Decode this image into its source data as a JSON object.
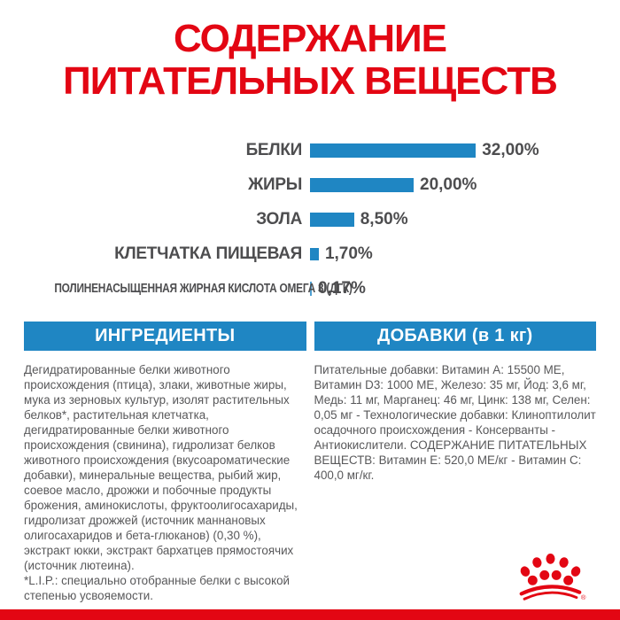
{
  "title": {
    "text": "СОДЕРЖАНИЕ ПИТАТЕЛЬНЫХ ВЕЩЕСТВ"
  },
  "chart_data": {
    "type": "bar",
    "orientation": "horizontal",
    "title": "СОДЕРЖАНИЕ ПИТАТЕЛЬНЫХ ВЕЩЕСТВ",
    "categories": [
      "БЕЛКИ",
      "ЖИРЫ",
      "ЗОЛА",
      "КЛЕТЧАТКА ПИЩЕВАЯ",
      "ПОЛИНЕНАСЫЩЕННАЯ ЖИРНАЯ КИСЛОТА ОМЕГА 3 (ДГК)"
    ],
    "values": [
      32.0,
      20.0,
      8.5,
      1.7,
      0.17
    ],
    "value_labels": [
      "32,00%",
      "20,00%",
      "8,50%",
      "1,70%",
      "0,17%"
    ],
    "unit": "%",
    "xlim": [
      0,
      34
    ],
    "grid": false,
    "legend": false,
    "bar_color": "#1f86c3",
    "label_color": "#4d4d4f"
  },
  "ingredients": {
    "header": "ИНГРЕДИЕНТЫ",
    "paragraphs": [
      "Дегидратированные белки животного происхождения (птица), злаки, животные жиры, мука из зерновых культур, изолят растительных белков*, растительная клетчатка, дегидратированные белки животного происхождения (свинина), гидролизат белков животного происхождения (вкусоароматические добавки), минеральные вещества, рыбий жир, соевое масло, дрожжи и побочные продукты брожения, аминокислоты, фруктоолигосахариды, гидролизат дрожжей (источник маннановых олигосахаридов и бета-глюканов) (0,30 %), экстракт юкки, экстракт бархатцев прямостоячих (источник лютеина).",
      "*L.I.P.: специально отобранные белки с высокой степенью усвояемости."
    ]
  },
  "additives": {
    "header": "ДОБАВКИ (в 1 кг)",
    "text": "Питательные добавки: Витамин A: 15500 МЕ, Витамин D3: 1000 МЕ, Железо: 35 мг, Йод: 3,6 мг, Медь: 11 мг, Марганец: 46 мг, Цинк: 138 мг, Селен: 0,05 мг - Технологические добавки: Клиноптилолит осадочного происхождения - Консерванты - Антиокислители. СОДЕРЖАНИЕ ПИТАТЕЛЬНЫХ ВЕЩЕСТВ: Витамин E: 520,0 МЕ/кг - Витамин C: 400,0 мг/кг."
  },
  "footer": {
    "registered_mark": "®"
  },
  "colors": {
    "brand_red": "#e30613",
    "brand_blue": "#1f86c3",
    "text_gray": "#58585a",
    "label_gray": "#4d4d4f"
  }
}
